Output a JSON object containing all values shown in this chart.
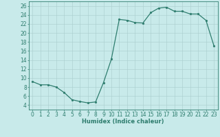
{
  "x": [
    0,
    1,
    2,
    3,
    4,
    5,
    6,
    7,
    8,
    9,
    10,
    11,
    12,
    13,
    14,
    15,
    16,
    17,
    18,
    19,
    20,
    21,
    22,
    23
  ],
  "y": [
    9.2,
    8.5,
    8.5,
    8.0,
    6.8,
    5.2,
    4.8,
    4.5,
    4.7,
    9.0,
    14.2,
    23.0,
    22.8,
    22.3,
    22.2,
    24.5,
    25.5,
    25.7,
    24.8,
    24.8,
    24.2,
    24.2,
    22.8,
    17.2
  ],
  "line_color": "#2e7d6e",
  "marker": "o",
  "markersize": 2.0,
  "linewidth": 0.9,
  "xlim": [
    -0.5,
    23.5
  ],
  "ylim": [
    3,
    27
  ],
  "yticks": [
    4,
    6,
    8,
    10,
    12,
    14,
    16,
    18,
    20,
    22,
    24,
    26
  ],
  "xticks": [
    0,
    1,
    2,
    3,
    4,
    5,
    6,
    7,
    8,
    9,
    10,
    11,
    12,
    13,
    14,
    15,
    16,
    17,
    18,
    19,
    20,
    21,
    22,
    23
  ],
  "xlabel": "Humidex (Indice chaleur)",
  "background_color": "#c8eaea",
  "grid_color": "#a8cccc",
  "axis_color": "#2e7d6e",
  "tick_color": "#2e7d6e",
  "label_color": "#2e7d6e",
  "xlabel_fontsize": 6.0,
  "tick_fontsize": 5.5
}
